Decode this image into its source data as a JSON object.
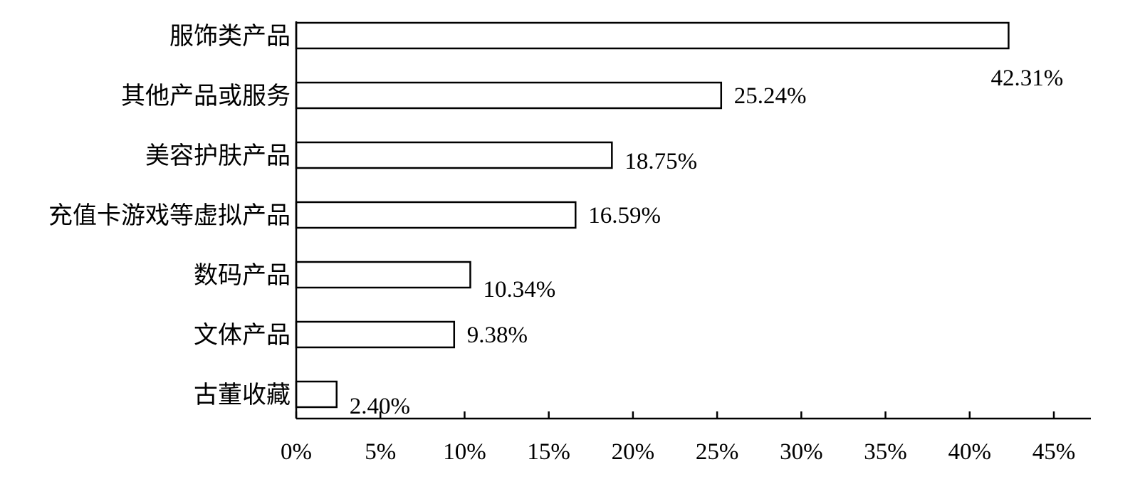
{
  "chart_data": {
    "type": "bar",
    "orientation": "horizontal",
    "categories": [
      "服饰类产品",
      "其他产品或服务",
      "美容护肤产品",
      "充值卡游戏等虚拟产品",
      "数码产品",
      "文体产品",
      "古董收藏"
    ],
    "values": [
      42.31,
      25.24,
      18.75,
      16.59,
      10.34,
      9.38,
      2.4
    ],
    "value_labels": [
      "42.31%",
      "25.24%",
      "18.75%",
      "16.59%",
      "10.34%",
      "9.38%",
      "2.40%"
    ],
    "xlim": [
      0,
      45
    ],
    "x_ticks": [
      0,
      5,
      10,
      15,
      20,
      25,
      30,
      35,
      40,
      45
    ],
    "x_tick_labels": [
      "0%",
      "5%",
      "10%",
      "15%",
      "20%",
      "25%",
      "30%",
      "35%",
      "40%",
      "45%"
    ],
    "title": "",
    "xlabel": "",
    "ylabel": "",
    "grid": false,
    "legend": false,
    "colors": {
      "bar_fill": "#ffffff",
      "bar_stroke": "#000000",
      "text": "#000000"
    }
  }
}
